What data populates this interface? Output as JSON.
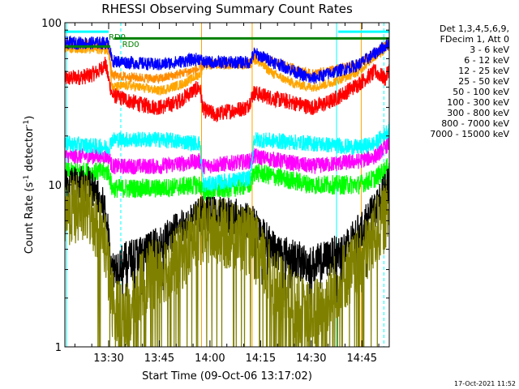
{
  "chart_data": {
    "type": "line",
    "title": "RHESSI Observing Summary Count Rates",
    "xlabel": "Start Time (09-Oct-06 13:17:02)",
    "ylabel_main": "Count Rate (s",
    "ylabel_sup1": "-1",
    "ylabel_mid": " detector",
    "ylabel_sup2": "-1",
    "ylabel_end": ")",
    "y_scale": "log",
    "ylim": [
      1,
      100
    ],
    "xlim_minutes": [
      17.03,
      59.1
    ],
    "x_ticks": [
      {
        "label": "13:30",
        "minutes": 30
      },
      {
        "label": "13:45",
        "minutes": 45
      },
      {
        "label": "14:00",
        "minutes": 60
      },
      {
        "label": "14:15",
        "minutes": 75
      },
      {
        "label": "14:30",
        "minutes": 90
      },
      {
        "label": "14:45",
        "minutes": 105
      }
    ],
    "y_ticks": [
      {
        "label": "1",
        "value": 1
      },
      {
        "label": "10",
        "value": 10
      },
      {
        "label": "100",
        "value": 100
      }
    ],
    "legend_header": [
      "Det 1,3,4,5,6,9,",
      "FDecim 1, Att 0"
    ],
    "legend_placement": "right",
    "series": [
      {
        "name": "3 - 6 keV",
        "color": "#ff0000",
        "values_by_minute": [
          [
            17,
            45
          ],
          [
            24,
            47
          ],
          [
            27,
            50
          ],
          [
            29,
            56
          ],
          [
            31,
            36
          ],
          [
            36,
            33
          ],
          [
            40,
            31
          ],
          [
            45,
            30
          ],
          [
            50,
            32
          ],
          [
            55,
            38
          ],
          [
            57,
            40
          ],
          [
            58,
            29
          ],
          [
            62,
            27
          ],
          [
            64,
            28
          ],
          [
            71,
            30
          ],
          [
            73,
            37
          ],
          [
            79,
            34
          ],
          [
            85,
            32
          ],
          [
            90,
            30
          ],
          [
            95,
            32
          ],
          [
            100,
            37
          ],
          [
            104,
            42
          ],
          [
            109,
            50
          ],
          [
            112,
            45
          ],
          [
            113,
            52
          ]
        ]
      },
      {
        "name": "6 - 12 keV",
        "color": "#ff00ff",
        "values_by_minute": [
          [
            17,
            15
          ],
          [
            30,
            15
          ],
          [
            31,
            13
          ],
          [
            45,
            13
          ],
          [
            57,
            14
          ],
          [
            58,
            13
          ],
          [
            72,
            14
          ],
          [
            73,
            15
          ],
          [
            90,
            13
          ],
          [
            104,
            14
          ],
          [
            109,
            15
          ],
          [
            113,
            18
          ]
        ]
      },
      {
        "name": "12 - 25 keV",
        "color": "#00ff00",
        "values_by_minute": [
          [
            17,
            12
          ],
          [
            30,
            12
          ],
          [
            31,
            9.5
          ],
          [
            45,
            9.5
          ],
          [
            57,
            10
          ],
          [
            58,
            9
          ],
          [
            72,
            10
          ],
          [
            73,
            12
          ],
          [
            90,
            10
          ],
          [
            104,
            10
          ],
          [
            109,
            11
          ],
          [
            113,
            13
          ]
        ]
      },
      {
        "name": "25 - 50 keV",
        "color": "#00ffff",
        "values_by_minute": [
          [
            17,
            18
          ],
          [
            30,
            17
          ],
          [
            31,
            19
          ],
          [
            45,
            19
          ],
          [
            57,
            18
          ],
          [
            58,
            10
          ],
          [
            72,
            11
          ],
          [
            73,
            19
          ],
          [
            90,
            18
          ],
          [
            104,
            17
          ],
          [
            109,
            18
          ],
          [
            113,
            22
          ]
        ]
      },
      {
        "name": "50 - 100 keV",
        "color": "#ffa500",
        "values_by_minute": [
          [
            17,
            70
          ],
          [
            30,
            68
          ],
          [
            31,
            40
          ],
          [
            36,
            41
          ],
          [
            45,
            38
          ],
          [
            52,
            42
          ],
          [
            57,
            48
          ],
          [
            58,
            55
          ],
          [
            72,
            55
          ],
          [
            73,
            60
          ],
          [
            79,
            48
          ],
          [
            85,
            42
          ],
          [
            90,
            40
          ],
          [
            95,
            42
          ],
          [
            100,
            46
          ],
          [
            104,
            50
          ],
          [
            108,
            60
          ],
          [
            113,
            72
          ]
        ]
      },
      {
        "name": "100 - 300 keV",
        "color": "#ff8c00",
        "values_by_minute": [
          [
            17,
            75
          ],
          [
            30,
            72
          ],
          [
            31,
            47
          ],
          [
            45,
            45
          ],
          [
            57,
            52
          ],
          [
            58,
            56
          ],
          [
            72,
            56
          ],
          [
            73,
            63
          ],
          [
            90,
            48
          ],
          [
            104,
            55
          ],
          [
            113,
            75
          ]
        ]
      },
      {
        "name": "300 - 800 keV",
        "color": "#0000ff",
        "values_by_minute": [
          [
            17,
            75
          ],
          [
            30,
            75
          ],
          [
            31,
            58
          ],
          [
            45,
            55
          ],
          [
            57,
            60
          ],
          [
            58,
            57
          ],
          [
            72,
            57
          ],
          [
            73,
            65
          ],
          [
            90,
            45
          ],
          [
            104,
            55
          ],
          [
            109,
            65
          ],
          [
            113,
            75
          ]
        ]
      },
      {
        "name": "800 - 7000 keV",
        "color": "#000000",
        "values_by_minute": [
          [
            17,
            10
          ],
          [
            24,
            10
          ],
          [
            29,
            7
          ],
          [
            31,
            3
          ],
          [
            36,
            3.5
          ],
          [
            40,
            3.8
          ],
          [
            45,
            4.2
          ],
          [
            50,
            5.2
          ],
          [
            55,
            6
          ],
          [
            57,
            6.5
          ],
          [
            64,
            6.5
          ],
          [
            72,
            6
          ],
          [
            75,
            5
          ],
          [
            79,
            4
          ],
          [
            85,
            3.5
          ],
          [
            90,
            3.2
          ],
          [
            95,
            3.5
          ],
          [
            100,
            4
          ],
          [
            104,
            5
          ],
          [
            109,
            7
          ],
          [
            113,
            10
          ]
        ]
      },
      {
        "name": "7000 - 15000 keV",
        "color": "#808000",
        "values_by_minute": [
          [
            17,
            7
          ],
          [
            24,
            7
          ],
          [
            29,
            4.5
          ],
          [
            31,
            1.9
          ],
          [
            36,
            1.5
          ],
          [
            40,
            2.5
          ],
          [
            45,
            3
          ],
          [
            50,
            3.3
          ],
          [
            55,
            4.5
          ],
          [
            57,
            5
          ],
          [
            64,
            5
          ],
          [
            72,
            4.5
          ],
          [
            75,
            3.5
          ],
          [
            79,
            2.5
          ],
          [
            85,
            1.8
          ],
          [
            90,
            1.5
          ],
          [
            95,
            2
          ],
          [
            100,
            2.8
          ],
          [
            104,
            3.2
          ],
          [
            109,
            5
          ],
          [
            113,
            7
          ]
        ]
      }
    ],
    "annotations": {
      "rd_label_1": "RD0",
      "rd_label_2": "RD0",
      "rd_label_3": "RD0",
      "timestamp": "17-Oct-2021 11:52"
    },
    "bars": {
      "rd_green_color": "#008000",
      "rd_green_value": 80,
      "cyan_value": 88
    }
  }
}
